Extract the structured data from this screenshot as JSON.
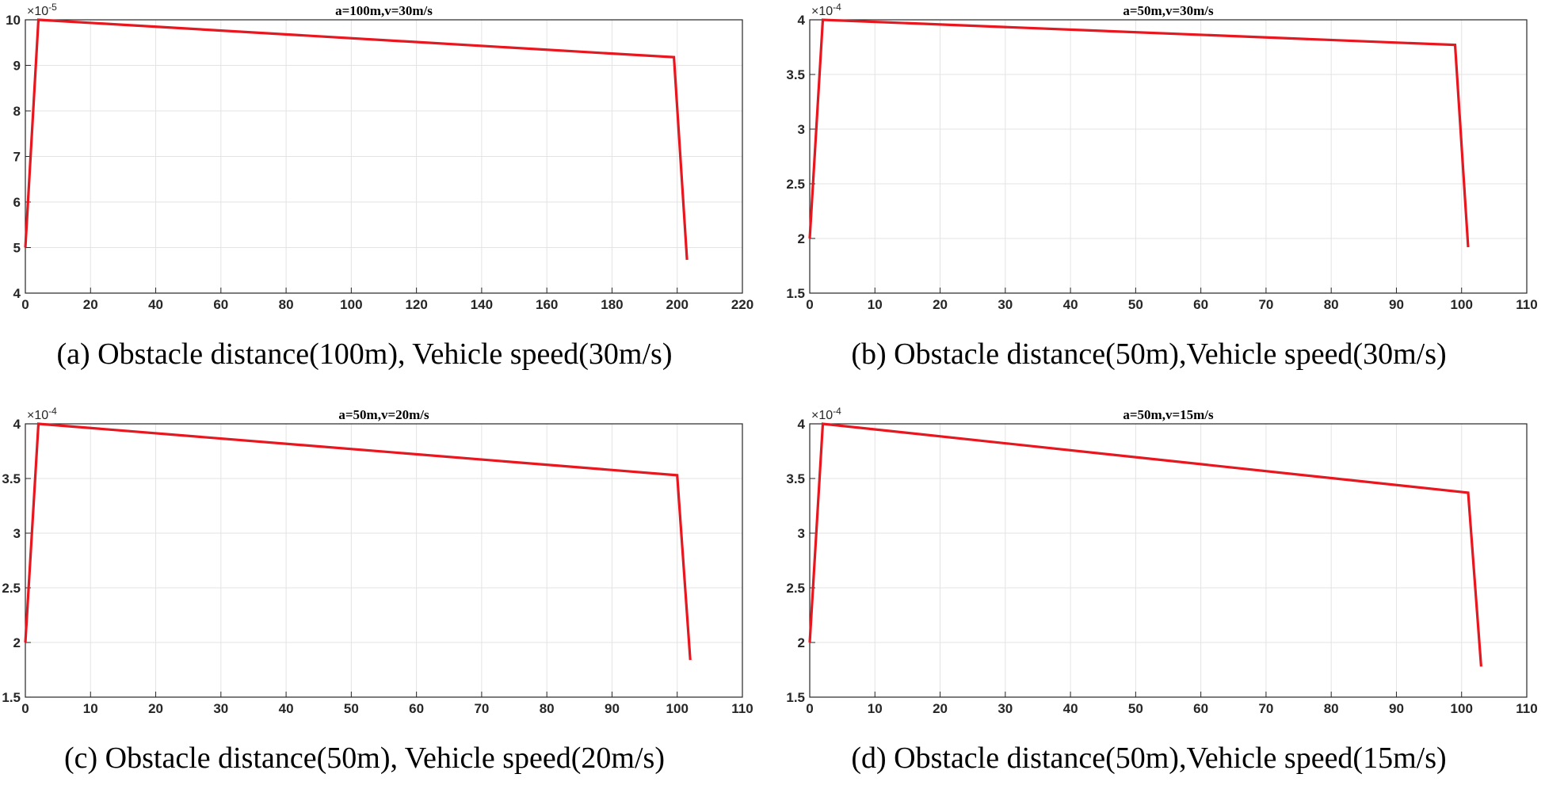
{
  "chart_data": [
    {
      "id": "a",
      "type": "line",
      "title": "a=100m,v=30m/s",
      "caption": "(a) Obstacle distance(100m), Vehicle speed(30m/s)",
      "exponent_base": "×10",
      "exponent_power": "-5",
      "xlabel": "",
      "ylabel": "",
      "xlim": [
        0,
        220
      ],
      "ylim": [
        4,
        10
      ],
      "xticks": [
        0,
        20,
        40,
        60,
        80,
        100,
        120,
        140,
        160,
        180,
        200,
        220
      ],
      "yticks": [
        4,
        5,
        6,
        7,
        8,
        9,
        10
      ],
      "grid": true,
      "line_color": "#e8161e",
      "series": [
        {
          "name": "",
          "x": [
            0,
            4,
            199,
            203
          ],
          "y": [
            5.0,
            10.0,
            9.18,
            4.73
          ]
        }
      ]
    },
    {
      "id": "b",
      "type": "line",
      "title": "a=50m,v=30m/s",
      "caption": "(b) Obstacle distance(50m),Vehicle speed(30m/s)",
      "exponent_base": "×10",
      "exponent_power": "-4",
      "xlabel": "",
      "ylabel": "",
      "xlim": [
        0,
        110
      ],
      "ylim": [
        1.5,
        4
      ],
      "xticks": [
        0,
        10,
        20,
        30,
        40,
        50,
        60,
        70,
        80,
        90,
        100,
        110
      ],
      "yticks": [
        1.5,
        2,
        2.5,
        3,
        3.5,
        4
      ],
      "grid": true,
      "line_color": "#e8161e",
      "series": [
        {
          "name": "",
          "x": [
            0,
            2,
            99,
            101
          ],
          "y": [
            2.0,
            4.0,
            3.77,
            1.92
          ]
        }
      ]
    },
    {
      "id": "c",
      "type": "line",
      "title": "a=50m,v=20m/s",
      "caption": "(c) Obstacle distance(50m), Vehicle speed(20m/s)",
      "exponent_base": "×10",
      "exponent_power": "-4",
      "xlabel": "",
      "ylabel": "",
      "xlim": [
        0,
        110
      ],
      "ylim": [
        1.5,
        4
      ],
      "xticks": [
        0,
        10,
        20,
        30,
        40,
        50,
        60,
        70,
        80,
        90,
        100,
        110
      ],
      "yticks": [
        1.5,
        2,
        2.5,
        3,
        3.5,
        4
      ],
      "grid": true,
      "line_color": "#e8161e",
      "series": [
        {
          "name": "",
          "x": [
            0,
            2,
            100,
            102
          ],
          "y": [
            2.0,
            4.0,
            3.53,
            1.84
          ]
        }
      ]
    },
    {
      "id": "d",
      "type": "line",
      "title": "a=50m,v=15m/s",
      "caption": "(d) Obstacle distance(50m),Vehicle speed(15m/s)",
      "exponent_base": "×10",
      "exponent_power": "-4",
      "xlabel": "",
      "ylabel": "",
      "xlim": [
        0,
        110
      ],
      "ylim": [
        1.5,
        4
      ],
      "xticks": [
        0,
        10,
        20,
        30,
        40,
        50,
        60,
        70,
        80,
        90,
        100,
        110
      ],
      "yticks": [
        1.5,
        2,
        2.5,
        3,
        3.5,
        4
      ],
      "grid": true,
      "line_color": "#e8161e",
      "series": [
        {
          "name": "",
          "x": [
            0,
            2,
            101,
            103
          ],
          "y": [
            2.0,
            4.0,
            3.37,
            1.78
          ]
        }
      ]
    }
  ]
}
